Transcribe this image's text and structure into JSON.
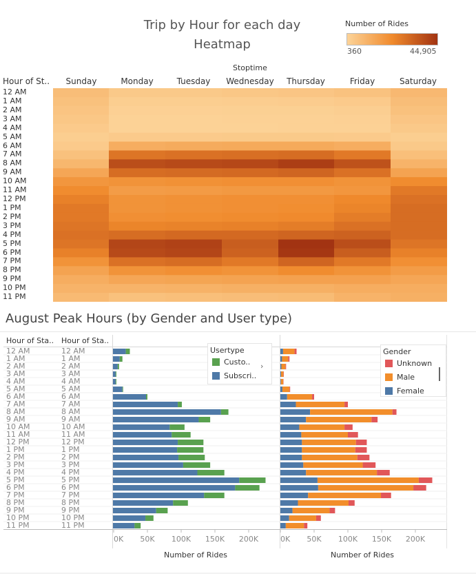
{
  "heatmap": {
    "title_line1": "Trip by Hour for each day",
    "title_line2": "Heatmap",
    "legend_title": "Number of Rides",
    "legend_min": "360",
    "legend_max": "44,905",
    "color_low": "#fcd398",
    "color_mid": "#f08a2c",
    "color_high": "#a23312",
    "column_group_label": "Stoptime",
    "row_header": "Hour of St..",
    "days": [
      "Sunday",
      "Monday",
      "Tuesday",
      "Wednesday",
      "Thursday",
      "Friday",
      "Saturday"
    ],
    "hours": [
      "12 AM",
      "1 AM",
      "2 AM",
      "3 AM",
      "4 AM",
      "5 AM",
      "6 AM",
      "7 AM",
      "8 AM",
      "9 AM",
      "10 AM",
      "11 AM",
      "12 PM",
      "1 PM",
      "2 PM",
      "3 PM",
      "4 PM",
      "5 PM",
      "6 PM",
      "7 PM",
      "8 PM",
      "9 PM",
      "10 PM",
      "11 PM"
    ]
  },
  "chart_data": [
    {
      "type": "heatmap",
      "title": "Trip by Hour for each day Heatmap",
      "xlabel": "Stoptime",
      "ylabel": "Hour of St..",
      "x": [
        "Sunday",
        "Monday",
        "Tuesday",
        "Wednesday",
        "Thursday",
        "Friday",
        "Saturday"
      ],
      "y": [
        "12 AM",
        "1 AM",
        "2 AM",
        "3 AM",
        "4 AM",
        "5 AM",
        "6 AM",
        "7 AM",
        "8 AM",
        "9 AM",
        "10 AM",
        "11 AM",
        "12 PM",
        "1 PM",
        "2 PM",
        "3 PM",
        "4 PM",
        "5 PM",
        "6 PM",
        "7 PM",
        "8 PM",
        "9 PM",
        "10 PM",
        "11 PM"
      ],
      "value_range": [
        360,
        44905
      ],
      "values": [
        [
          7000,
          3500,
          3500,
          4000,
          4500,
          5500,
          8500
        ],
        [
          6000,
          2000,
          2000,
          2200,
          2500,
          3000,
          7000
        ],
        [
          5000,
          1200,
          1200,
          1300,
          1400,
          1800,
          6000
        ],
        [
          4000,
          800,
          800,
          900,
          1000,
          1200,
          4500
        ],
        [
          3000,
          700,
          700,
          800,
          900,
          1000,
          3500
        ],
        [
          2000,
          3000,
          3100,
          3200,
          3200,
          3000,
          2000
        ],
        [
          3000,
          12000,
          12500,
          13000,
          13000,
          12000,
          3500
        ],
        [
          6000,
          28000,
          29000,
          29500,
          30000,
          27000,
          6500
        ],
        [
          9000,
          38000,
          39000,
          39500,
          42000,
          37000,
          10000
        ],
        [
          14000,
          30000,
          30500,
          31000,
          32000,
          29000,
          15000
        ],
        [
          19000,
          20000,
          20500,
          21000,
          21000,
          20000,
          22000
        ],
        [
          22000,
          17000,
          17500,
          18000,
          18000,
          19000,
          27000
        ],
        [
          25000,
          20000,
          20500,
          21000,
          21000,
          23000,
          29000
        ],
        [
          27000,
          20000,
          20500,
          21000,
          21500,
          24000,
          30000
        ],
        [
          27000,
          21000,
          21500,
          22000,
          22500,
          26000,
          30000
        ],
        [
          28000,
          24000,
          24500,
          25000,
          26000,
          29000,
          30000
        ],
        [
          29000,
          30000,
          31000,
          31000,
          32000,
          33000,
          30000
        ],
        [
          28000,
          40000,
          41000,
          34000,
          44905,
          38000,
          28000
        ],
        [
          25000,
          39000,
          40000,
          33000,
          44000,
          34000,
          25000
        ],
        [
          20000,
          29000,
          30000,
          27000,
          32000,
          27000,
          21000
        ],
        [
          15000,
          20000,
          21000,
          20000,
          22000,
          20000,
          17000
        ],
        [
          12000,
          14000,
          14500,
          15000,
          15500,
          15500,
          14000
        ],
        [
          10000,
          10000,
          10500,
          11000,
          11000,
          12000,
          12000
        ],
        [
          8000,
          6000,
          6500,
          7000,
          7500,
          10000,
          11000
        ]
      ]
    },
    {
      "type": "bar",
      "stacked": true,
      "orientation": "horizontal",
      "title": "August Peak Hours (by Gender and User type)",
      "xlabel": "Number of Rides",
      "ylabel": "Hour of Sta..",
      "categories": [
        "12 AM",
        "1 AM",
        "2 AM",
        "3 AM",
        "4 AM",
        "5 AM",
        "6 AM",
        "7 AM",
        "8 AM",
        "9 AM",
        "10 AM",
        "11 AM",
        "12 PM",
        "1 PM",
        "2 PM",
        "3 PM",
        "4 PM",
        "5 PM",
        "6 PM",
        "7 PM",
        "8 PM",
        "9 PM",
        "10 PM",
        "11 PM"
      ],
      "xlim": [
        0,
        230000
      ],
      "ticks": [
        "0K",
        "50K",
        "100K",
        "150K",
        "200K"
      ],
      "legend_title": "Usertype",
      "series": [
        {
          "name": "Subscriber",
          "color": "#4e79a7",
          "values": [
            19000,
            10000,
            7000,
            4000,
            4000,
            14000,
            49000,
            96000,
            160000,
            127000,
            84000,
            87000,
            96000,
            95000,
            97000,
            104000,
            125000,
            187000,
            181000,
            135000,
            89000,
            64000,
            48000,
            32000
          ]
        },
        {
          "name": "Customer",
          "color": "#59a14f",
          "values": [
            6000,
            4000,
            2000,
            1000,
            1000,
            1000,
            2000,
            6000,
            11000,
            17000,
            22000,
            28000,
            38000,
            39000,
            39000,
            40000,
            40000,
            39000,
            36000,
            30000,
            22000,
            17000,
            12000,
            9000
          ]
        }
      ]
    },
    {
      "type": "bar",
      "stacked": true,
      "orientation": "horizontal",
      "xlabel": "Number of Rides",
      "categories": [
        "12 AM",
        "1 AM",
        "2 AM",
        "3 AM",
        "4 AM",
        "5 AM",
        "6 AM",
        "7 AM",
        "8 AM",
        "9 AM",
        "10 AM",
        "11 AM",
        "12 PM",
        "1 PM",
        "2 PM",
        "3 PM",
        "4 PM",
        "5 PM",
        "6 PM",
        "7 PM",
        "8 PM",
        "9 PM",
        "10 PM",
        "11 PM"
      ],
      "xlim": [
        0,
        230000
      ],
      "ticks": [
        "0K",
        "50K",
        "100K",
        "150K",
        "200K"
      ],
      "legend_title": "Gender",
      "series": [
        {
          "name": "Female",
          "color": "#4e79a7",
          "values": [
            4000,
            2500,
            1500,
            1000,
            800,
            3000,
            10000,
            23000,
            44000,
            38000,
            28000,
            31000,
            32000,
            32000,
            32000,
            34000,
            38000,
            55000,
            56000,
            41000,
            26000,
            18000,
            13000,
            8000
          ]
        },
        {
          "name": "Male",
          "color": "#f28e2b",
          "values": [
            17000,
            9000,
            6000,
            3500,
            3300,
            10500,
            37000,
            72000,
            122000,
            97000,
            67000,
            69000,
            80000,
            79000,
            82000,
            88000,
            105000,
            150000,
            141000,
            108000,
            75000,
            55000,
            40000,
            27000
          ]
        },
        {
          "name": "Unknown",
          "color": "#e15759",
          "values": [
            3000,
            2000,
            1000,
            600,
            500,
            1000,
            3000,
            5000,
            6000,
            9000,
            12000,
            15000,
            16000,
            17000,
            18000,
            19000,
            19000,
            20000,
            19000,
            15000,
            9000,
            8000,
            7000,
            5000
          ]
        }
      ]
    }
  ],
  "peak": {
    "title": "August Peak Hours (by Gender and User type)",
    "row_header_a": "Hour of Sta..",
    "row_header_b": "Hour of Sta..",
    "axis_title_left": "Number of Rides",
    "axis_title_right": "Number of Rides",
    "usertype_legend_title": "Usertype",
    "usertype_items": [
      "Custo..",
      "Subscri.."
    ],
    "usertype_more": "›",
    "gender_legend_title": "Gender",
    "gender_items": [
      "Unknown",
      "Male",
      "Female"
    ]
  }
}
